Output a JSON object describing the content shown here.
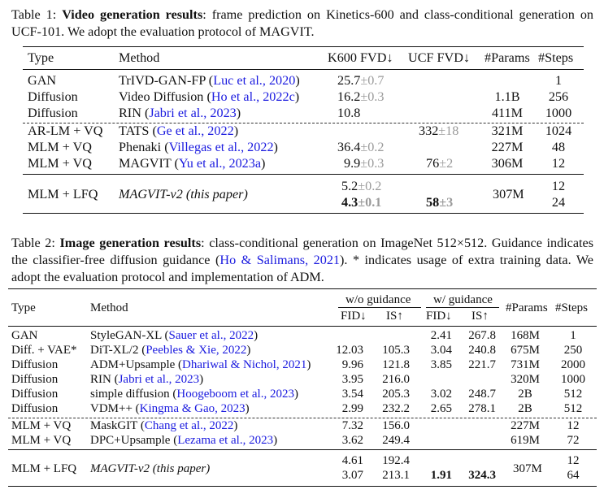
{
  "table1": {
    "caption_label": "Table 1:",
    "caption_title": "Video generation results",
    "caption_rest": ": frame prediction on Kinetics-600 and class-conditional generation on UCF-101. We adopt the evaluation protocol of MAGVIT.",
    "headers": [
      "Type",
      "Method",
      "K600 FVD↓",
      "UCF FVD↓",
      "#Params",
      "#Steps"
    ],
    "rows": [
      {
        "type": "GAN",
        "method": "TrIVD-GAN-FP",
        "cite": "Luc et al., 2020",
        "k600": "25.7",
        "k600_pm": "±0.7",
        "ucf": "",
        "ucf_pm": "",
        "params": "",
        "steps": "1"
      },
      {
        "type": "Diffusion",
        "method": "Video Diffusion",
        "cite": "Ho et al., 2022c",
        "k600": "16.2",
        "k600_pm": "±0.3",
        "ucf": "",
        "ucf_pm": "",
        "params": "1.1B",
        "steps": "256"
      },
      {
        "type": "Diffusion",
        "method": "RIN",
        "cite": "Jabri et al., 2023",
        "k600": "10.8",
        "k600_pm": "",
        "ucf": "",
        "ucf_pm": "",
        "params": "411M",
        "steps": "1000"
      },
      {
        "type": "AR-LM + VQ",
        "method": "TATS",
        "cite": "Ge et al., 2022",
        "k600": "",
        "k600_pm": "",
        "ucf": "332",
        "ucf_pm": "±18",
        "params": "321M",
        "steps": "1024"
      },
      {
        "type": "MLM + VQ",
        "method": "Phenaki",
        "cite": "Villegas et al., 2022",
        "k600": "36.4",
        "k600_pm": "±0.2",
        "ucf": "",
        "ucf_pm": "",
        "params": "227M",
        "steps": "48"
      },
      {
        "type": "MLM + VQ",
        "method": "MAGVIT",
        "cite": "Yu et al., 2023a",
        "k600": "9.9",
        "k600_pm": "±0.3",
        "ucf": "76",
        "ucf_pm": "±2",
        "params": "306M",
        "steps": "12"
      }
    ],
    "ours": {
      "type": "MLM + LFQ",
      "method": "MAGVIT-v2 (this paper)",
      "k600_a": "5.2",
      "k600_a_pm": "±0.2",
      "k600_b": "4.3",
      "k600_b_pm": "±0.1",
      "ucf": "58",
      "ucf_pm": "±3",
      "params": "307M",
      "steps_a": "12",
      "steps_b": "24"
    }
  },
  "table2": {
    "caption_label": "Table 2:",
    "caption_title": "Image generation results",
    "caption_rest": ": class-conditional generation on ImageNet 512×512. Guidance indicates the classifier-free diffusion guidance (",
    "caption_cite": "Ho & Salimans, 2021",
    "caption_tail": "). * indicates usage of extra training data. We adopt the evaluation protocol and implementation of ADM.",
    "group_wo": "w/o guidance",
    "group_w": "w/ guidance",
    "headers": [
      "Type",
      "Method",
      "FID↓",
      "IS↑",
      "FID↓",
      "IS↑",
      "#Params",
      "#Steps"
    ],
    "rows": [
      {
        "type": "GAN",
        "method": "StyleGAN-XL",
        "cite": "Sauer et al., 2022",
        "fid": "",
        "is": "",
        "gfid": "2.41",
        "gis": "267.8",
        "params": "168M",
        "steps": "1"
      },
      {
        "type": "Diff. + VAE*",
        "method": "DiT-XL/2",
        "cite": "Peebles & Xie, 2022",
        "fid": "12.03",
        "is": "105.3",
        "gfid": "3.04",
        "gis": "240.8",
        "params": "675M",
        "steps": "250"
      },
      {
        "type": "Diffusion",
        "method": "ADM+Upsample",
        "cite": "Dhariwal & Nichol, 2021",
        "fid": "9.96",
        "is": "121.8",
        "gfid": "3.85",
        "gis": "221.7",
        "params": "731M",
        "steps": "2000"
      },
      {
        "type": "Diffusion",
        "method": "RIN",
        "cite": "Jabri et al., 2023",
        "fid": "3.95",
        "is": "216.0",
        "gfid": "",
        "gis": "",
        "params": "320M",
        "steps": "1000"
      },
      {
        "type": "Diffusion",
        "method": "simple diffusion",
        "cite": "Hoogeboom et al., 2023",
        "fid": "3.54",
        "is": "205.3",
        "gfid": "3.02",
        "gis": "248.7",
        "params": "2B",
        "steps": "512"
      },
      {
        "type": "Diffusion",
        "method": "VDM++",
        "cite": "Kingma & Gao, 2023",
        "fid": "2.99",
        "is": "232.2",
        "gfid": "2.65",
        "gis": "278.1",
        "params": "2B",
        "steps": "512"
      },
      {
        "type": "MLM + VQ",
        "method": "MaskGIT",
        "cite": "Chang et al., 2022",
        "fid": "7.32",
        "is": "156.0",
        "gfid": "",
        "gis": "",
        "params": "227M",
        "steps": "12"
      },
      {
        "type": "MLM + VQ",
        "method": "DPC+Upsample",
        "cite": "Lezama et al., 2023",
        "fid": "3.62",
        "is": "249.4",
        "gfid": "",
        "gis": "",
        "params": "619M",
        "steps": "72"
      }
    ],
    "ours": {
      "type": "MLM + LFQ",
      "method": "MAGVIT-v2 (this paper)",
      "fid_a": "4.61",
      "is_a": "192.4",
      "fid_b": "3.07",
      "is_b": "213.1",
      "gfid": "1.91",
      "gis": "324.3",
      "params": "307M",
      "steps_a": "12",
      "steps_b": "64"
    }
  }
}
